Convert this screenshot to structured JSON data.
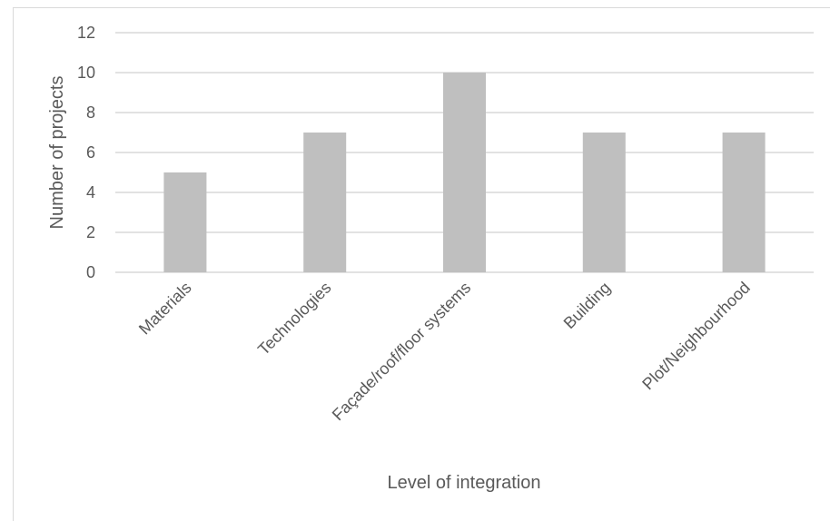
{
  "chart_data": {
    "type": "bar",
    "title": "",
    "xlabel": "Level of integration",
    "ylabel": "Number of projects",
    "categories": [
      "Materials",
      "Technologies",
      "Façade/roof/floor systems",
      "Building",
      "Plot/Neighbourhood"
    ],
    "values": [
      5,
      7,
      10,
      7,
      7
    ],
    "ylim": [
      0,
      12
    ],
    "yticks": [
      "0",
      "2",
      "4",
      "6",
      "8",
      "10",
      "12"
    ],
    "grid": true,
    "legend": "none",
    "bar_color": "#bfbfbf",
    "grid_color": "#d9d9d9",
    "text_color": "#595959"
  }
}
